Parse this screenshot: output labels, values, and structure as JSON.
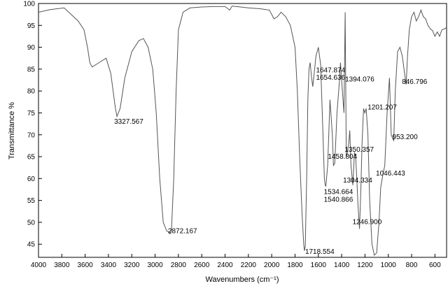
{
  "chart_data": {
    "type": "line",
    "xlabel": "Wavenumbers (cm⁻¹)",
    "ylabel": "Transmittance %",
    "xlim": [
      4000,
      500
    ],
    "ylim": [
      42,
      100
    ],
    "x_reversed": true,
    "x_ticks": [
      4000,
      3800,
      3600,
      3400,
      3200,
      3000,
      2800,
      2600,
      2400,
      2200,
      2000,
      1800,
      1600,
      1400,
      1200,
      1000,
      800,
      600
    ],
    "y_ticks": [
      45,
      50,
      55,
      60,
      65,
      70,
      75,
      80,
      85,
      90,
      95,
      100
    ],
    "grid": false,
    "series": [
      {
        "color": "#555555",
        "x": [
          4000,
          3900,
          3780,
          3720,
          3660,
          3610,
          3580,
          3560,
          3540,
          3480,
          3420,
          3380,
          3340,
          3327,
          3300,
          3260,
          3200,
          3140,
          3100,
          3060,
          3020,
          2990,
          2960,
          2930,
          2900,
          2880,
          2872,
          2860,
          2840,
          2820,
          2800,
          2760,
          2700,
          2600,
          2500,
          2400,
          2360,
          2340,
          2300,
          2200,
          2100,
          2020,
          1980,
          1950,
          1920,
          1880,
          1840,
          1800,
          1780,
          1760,
          1740,
          1725,
          1719,
          1712,
          1700,
          1690,
          1680,
          1670,
          1660,
          1648,
          1620,
          1600,
          1580,
          1560,
          1548,
          1541,
          1535,
          1520,
          1500,
          1480,
          1470,
          1459,
          1440,
          1420,
          1410,
          1394,
          1380,
          1370,
          1360,
          1350,
          1340,
          1330,
          1320,
          1304,
          1290,
          1280,
          1270,
          1260,
          1247,
          1235,
          1225,
          1212,
          1201,
          1190,
          1175,
          1160,
          1140,
          1120,
          1100,
          1080,
          1065,
          1046,
          1030,
          1010,
          990,
          975,
          960,
          953,
          940,
          920,
          900,
          880,
          860,
          847,
          835,
          820,
          800,
          780,
          760,
          740,
          720,
          700,
          680,
          660,
          640,
          620,
          600,
          580,
          560,
          540,
          520,
          500
        ],
        "y": [
          98,
          98.6,
          99,
          97.5,
          96,
          94,
          90,
          86.5,
          85.5,
          86.5,
          87.5,
          84,
          76,
          74.2,
          76,
          83,
          89,
          91.5,
          92,
          90,
          85,
          75,
          60,
          50,
          48,
          47.8,
          47.4,
          48,
          60,
          80,
          94,
          98,
          99,
          99.2,
          99.3,
          99.3,
          98.5,
          99.4,
          99.3,
          99,
          98.8,
          98.5,
          96.5,
          97,
          98,
          97,
          95,
          90,
          80,
          65,
          52,
          45,
          43.5,
          44.5,
          60,
          78,
          85,
          86.5,
          83.5,
          81,
          88,
          90,
          86,
          70,
          60,
          58.5,
          58.3,
          63,
          78,
          70,
          63,
          63.5,
          75,
          82,
          86.5,
          80,
          75,
          98,
          65,
          66,
          68,
          71,
          63,
          58.5,
          66,
          65,
          60,
          54,
          48.5,
          58,
          68,
          76,
          75,
          76,
          70,
          55,
          45,
          42.5,
          43,
          50,
          58,
          61,
          63,
          75,
          83,
          70,
          69,
          68.7,
          80,
          89,
          90,
          88,
          84,
          81.5,
          88,
          94,
          97,
          98,
          96,
          97,
          98.5,
          97,
          96.5,
          95,
          94.2,
          93.8,
          92.5,
          93.5,
          92.5,
          94,
          94.2,
          94.5
        ]
      }
    ],
    "annotations": [
      {
        "text": "3327.567",
        "x": 3327,
        "y": 74.2
      },
      {
        "text": "2872.167",
        "x": 2872,
        "y": 47.4
      },
      {
        "text": "1718.554",
        "x": 1719,
        "y": 43.5
      },
      {
        "text": "1647.874",
        "x": 1648,
        "y": 81
      },
      {
        "text": "1654.636",
        "x": 1655,
        "y": 80
      },
      {
        "text": "1394.076",
        "x": 1394,
        "y": 80
      },
      {
        "text": "1534.664",
        "x": 1535,
        "y": 58.3
      },
      {
        "text": "1540.866",
        "x": 1541,
        "y": 58.5
      },
      {
        "text": "1458.804",
        "x": 1459,
        "y": 63.5
      },
      {
        "text": "1350.357",
        "x": 1350,
        "y": 66
      },
      {
        "text": "1304.334",
        "x": 1304,
        "y": 58.5
      },
      {
        "text": "1246.900",
        "x": 1247,
        "y": 48.5
      },
      {
        "text": "1201.207",
        "x": 1201,
        "y": 75
      },
      {
        "text": "1046.443",
        "x": 1046,
        "y": 61
      },
      {
        "text": "953.200",
        "x": 953,
        "y": 68.7
      },
      {
        "text": "846.796",
        "x": 847,
        "y": 81.5
      }
    ]
  }
}
